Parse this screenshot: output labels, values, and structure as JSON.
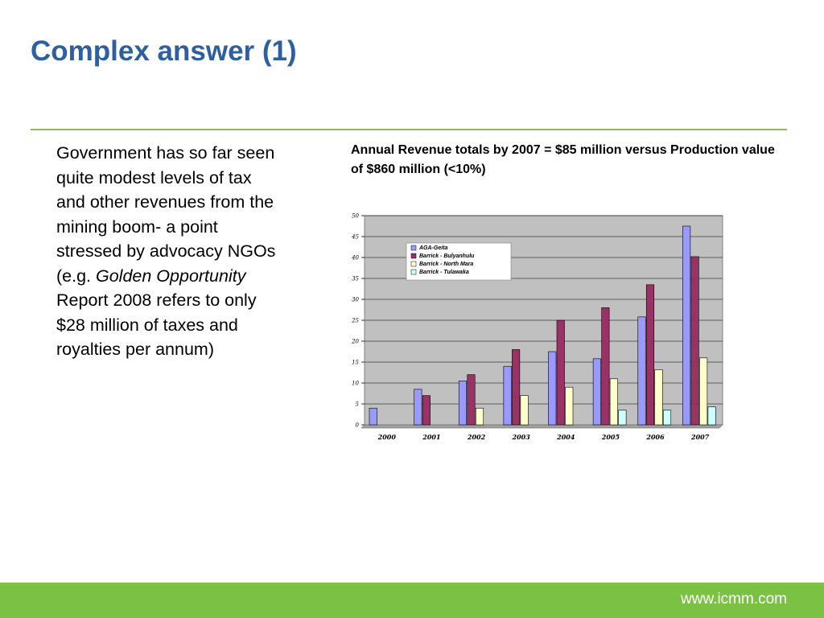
{
  "slide": {
    "title": "Complex answer (1)",
    "body_segments": [
      {
        "text": "Government has so far seen quite modest levels of tax and other revenues from the mining boom- a point stressed by advocacy NGOs (e.g. ",
        "italic": false
      },
      {
        "text": "Golden Opportunity",
        "italic": true
      },
      {
        "text": " Report 2008 refers to only $28 million of taxes and royalties per annum)",
        "italic": false
      }
    ],
    "chart_caption": "Annual Revenue totals by 2007 = $85 million versus Production value of $860 million (<10%)",
    "footer_url": "www.icmm.com"
  },
  "colors": {
    "title": "#2e5f9e",
    "rule": "#8cc152",
    "footer": "#7bc143",
    "plot_bg": "#c0c0c0"
  },
  "chart_data": {
    "type": "bar",
    "title": "",
    "xlabel": "",
    "ylabel": "",
    "categories": [
      "2000",
      "2001",
      "2002",
      "2003",
      "2004",
      "2005",
      "2006",
      "2007"
    ],
    "ylim": [
      0,
      50
    ],
    "yticks": [
      0,
      5,
      10,
      15,
      20,
      25,
      30,
      35,
      40,
      45,
      50
    ],
    "grid": true,
    "legend_position": "top-left",
    "series": [
      {
        "name": "AGA-Geita",
        "color": "#9999ff",
        "values": [
          4,
          8.5,
          10.5,
          14,
          17.5,
          15.8,
          25.8,
          47.5
        ]
      },
      {
        "name": "Barrick - Bulyanhulu",
        "color": "#993366",
        "values": [
          null,
          7,
          12,
          18,
          25,
          28,
          33.5,
          40.2
        ]
      },
      {
        "name": "Barrick - North Mara",
        "color": "#ffffcc",
        "values": [
          null,
          null,
          4,
          7,
          9,
          11,
          13.2,
          16
        ]
      },
      {
        "name": "Barrick - Tulawaka",
        "color": "#ccffff",
        "values": [
          null,
          null,
          null,
          null,
          null,
          3.5,
          3.5,
          4.3
        ]
      }
    ]
  }
}
